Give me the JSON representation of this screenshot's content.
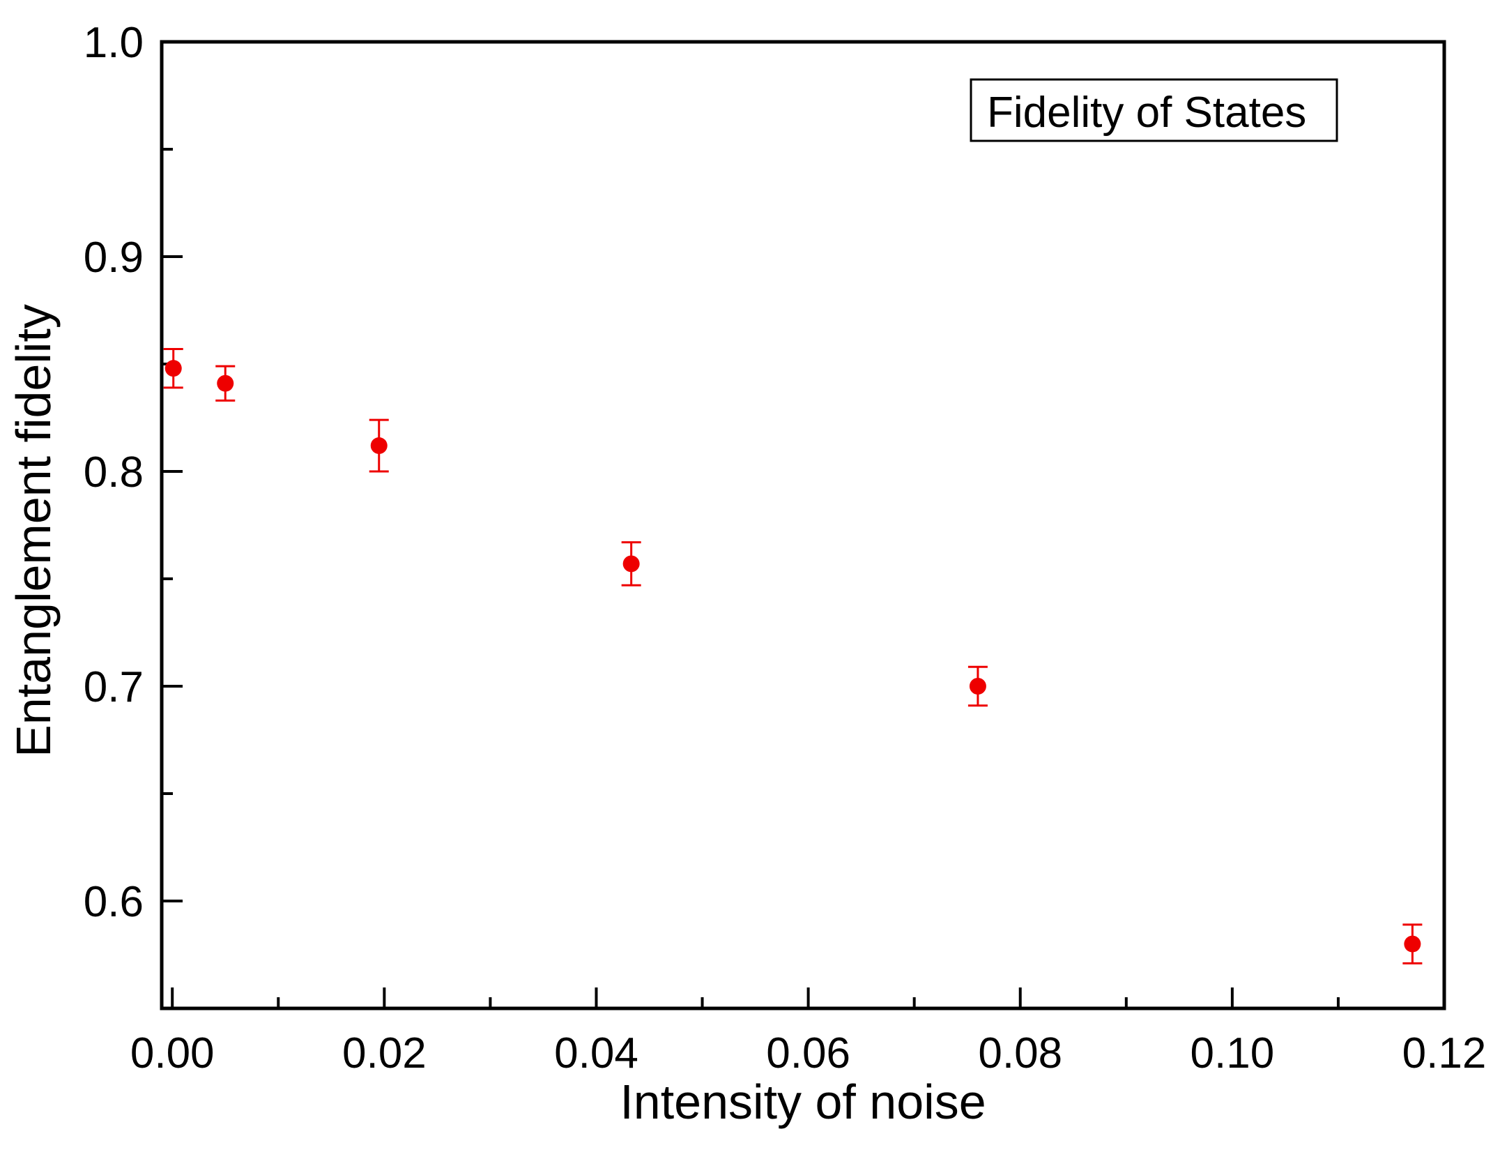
{
  "chart_data": {
    "type": "scatter",
    "title": "",
    "xlabel": "Intensity of noise",
    "ylabel": "Entanglement fidelity",
    "xlim": [
      -0.001,
      0.12
    ],
    "ylim": [
      0.55,
      1.0
    ],
    "x_ticks": [
      0.0,
      0.02,
      0.04,
      0.06,
      0.08,
      0.1,
      0.12
    ],
    "x_tick_labels": [
      "0.00",
      "0.02",
      "0.04",
      "0.06",
      "0.08",
      "0.10",
      "0.12"
    ],
    "y_ticks": [
      0.6,
      0.7,
      0.8,
      0.9,
      1.0
    ],
    "y_tick_labels": [
      "0.6",
      "0.7",
      "0.8",
      "0.9",
      "1.0"
    ],
    "y_minor_ticks": [
      0.65,
      0.75,
      0.85,
      0.95
    ],
    "x_minor_ticks": [
      0.01,
      0.03,
      0.05,
      0.07,
      0.09,
      0.11
    ],
    "grid": false,
    "legend_position": "top-right",
    "series": [
      {
        "name": "Fidelity of States",
        "color": "#ee0000",
        "x": [
          0.0001,
          0.005,
          0.0195,
          0.0433,
          0.076,
          0.117
        ],
        "y": [
          0.848,
          0.841,
          0.812,
          0.757,
          0.7,
          0.58
        ],
        "error": [
          0.009,
          0.008,
          0.012,
          0.01,
          0.009,
          0.009
        ]
      }
    ]
  }
}
